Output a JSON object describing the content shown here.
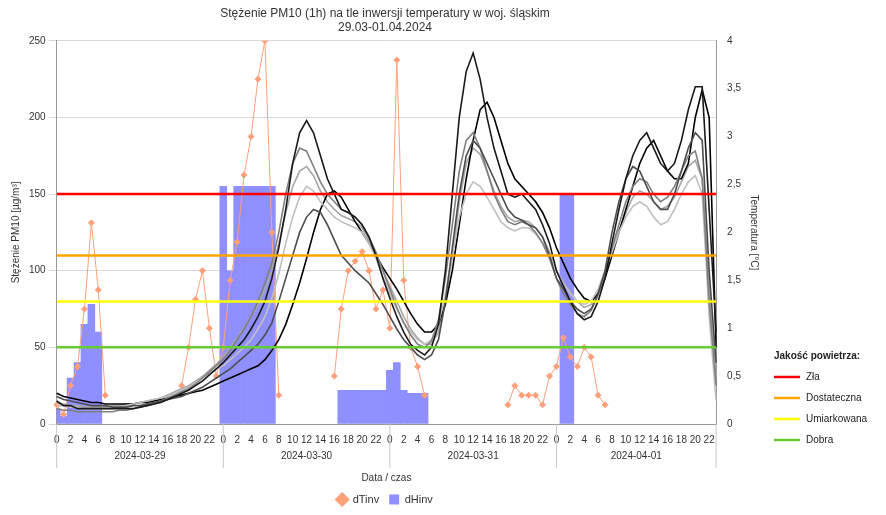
{
  "chart_data": {
    "type": "line",
    "title": "Stężenie PM10 (1h) na tle inwersji temperatury w woj. śląskim",
    "subtitle": "29.03-01.04.2024",
    "x_label": "Data / czas",
    "y_label": "Stężenie PM10 [µg/m³]",
    "y2_label": "Temperatura [°C]",
    "x_groups": [
      "2024-03-29",
      "2024-03-30",
      "2024-03-31",
      "2024-04-01"
    ],
    "categories": [
      "0",
      null,
      "2",
      null,
      "4",
      null,
      "6",
      null,
      "8",
      null,
      "10",
      null,
      "12",
      null,
      "14",
      null,
      "16",
      null,
      "18",
      null,
      "20",
      null,
      "22",
      null,
      "0",
      null,
      "2",
      null,
      "4",
      null,
      "6",
      null,
      "8",
      null,
      "10",
      null,
      "12",
      null,
      "14",
      null,
      "16",
      null,
      "18",
      null,
      "20",
      null,
      "22",
      null,
      "0",
      null,
      "2",
      null,
      "4",
      null,
      "6",
      null,
      "8",
      null,
      "10",
      null,
      "12",
      null,
      "14",
      null,
      "16",
      null,
      "18",
      null,
      "20",
      null,
      "22",
      null,
      "0",
      null,
      "2",
      null,
      "4",
      null,
      "6",
      null,
      "8",
      null,
      "10",
      null,
      "12",
      null,
      "14",
      null,
      "16",
      null,
      "18",
      null,
      "20",
      null,
      "22",
      null
    ],
    "ylim": [
      0,
      250
    ],
    "yticks": [
      0,
      50,
      100,
      150,
      200,
      250
    ],
    "y2lim": [
      0,
      4
    ],
    "y2ticks": [
      0,
      {
        "value": 0.5,
        "label": "0,5"
      },
      1,
      {
        "value": 1.5,
        "label": "1,5"
      },
      2,
      {
        "value": 2.5,
        "label": "2,5"
      },
      3,
      {
        "value": 3.5,
        "label": "3,5"
      },
      4
    ],
    "grid": true,
    "legend": "bottom",
    "thresholds_title": "Jakość powietrza:",
    "thresholds": [
      {
        "name": "Zła",
        "value": 150,
        "color": "#ff0000"
      },
      {
        "name": "Dostateczna",
        "value": 110,
        "color": "#ffa500"
      },
      {
        "name": "Umiarkowana",
        "value": 80,
        "color": "#ffff00"
      },
      {
        "name": "Dobra",
        "value": 50,
        "color": "#66cc33"
      }
    ],
    "series": [
      {
        "name": "dHinv",
        "type": "bar",
        "color": "#8f8fff",
        "values": [
          10,
          5,
          30,
          40,
          65,
          78,
          60,
          null,
          null,
          null,
          null,
          null,
          null,
          null,
          null,
          null,
          null,
          null,
          null,
          null,
          null,
          null,
          null,
          null,
          155,
          100,
          155,
          155,
          155,
          155,
          155,
          155,
          null,
          null,
          null,
          null,
          null,
          null,
          null,
          null,
          null,
          22,
          22,
          22,
          22,
          22,
          22,
          22,
          35,
          40,
          22,
          20,
          20,
          20,
          null,
          null,
          null,
          null,
          null,
          null,
          null,
          null,
          null,
          null,
          null,
          null,
          null,
          null,
          null,
          null,
          null,
          null,
          null,
          150,
          150,
          null,
          null,
          null,
          null,
          null,
          null,
          null,
          null,
          null,
          null,
          null,
          null,
          null,
          null,
          null,
          null,
          null,
          null,
          null,
          null,
          null
        ]
      },
      {
        "name": "dTinv",
        "type": "line",
        "axis": "y2",
        "color": "#ffa07a",
        "marker": "diamond",
        "values": [
          0.2,
          0.1,
          0.4,
          0.6,
          1.2,
          2.1,
          1.4,
          0.3,
          null,
          null,
          null,
          null,
          null,
          null,
          null,
          null,
          null,
          null,
          0.4,
          0.8,
          1.3,
          1.6,
          1.0,
          0.5,
          0.8,
          1.5,
          1.9,
          2.6,
          3.0,
          3.6,
          4,
          2.0,
          0.3,
          null,
          null,
          null,
          null,
          null,
          null,
          null,
          0.5,
          1.2,
          1.6,
          1.7,
          1.8,
          1.6,
          1.2,
          1.4,
          1.0,
          3.8,
          1.5,
          0.8,
          0.6,
          0.3,
          null,
          null,
          null,
          null,
          null,
          null,
          null,
          null,
          null,
          null,
          null,
          0.2,
          0.4,
          0.3,
          0.3,
          0.3,
          0.2,
          0.5,
          0.6,
          0.9,
          0.7,
          0.6,
          0.8,
          0.7,
          0.3,
          0.2,
          null,
          null,
          null,
          null,
          null,
          null,
          null,
          null,
          null,
          null,
          null,
          null,
          null,
          null,
          null,
          null
        ]
      },
      {
        "type": "line",
        "color": "#1a1a1a",
        "values": [
          15,
          12,
          12,
          10,
          10,
          10,
          10,
          10,
          10,
          10,
          10,
          10,
          11,
          12,
          13,
          14,
          16,
          18,
          20,
          22,
          25,
          28,
          32,
          36,
          40,
          45,
          50,
          55,
          62,
          70,
          80,
          95,
          115,
          140,
          170,
          190,
          198,
          190,
          175,
          160,
          150,
          140,
          138,
          135,
          130,
          122,
          110,
          95,
          82,
          70,
          60,
          52,
          48,
          45,
          50,
          65,
          100,
          150,
          200,
          230,
          242,
          225,
          200,
          180,
          165,
          150,
          148,
          150,
          145,
          140,
          130,
          118,
          100,
          90,
          80,
          72,
          68,
          70,
          80,
          95,
          118,
          140,
          160,
          175,
          185,
          190,
          180,
          170,
          165,
          170,
          185,
          205,
          220,
          220,
          140,
          60
        ]
      },
      {
        "type": "line",
        "color": "#4d4d4d",
        "values": [
          18,
          16,
          15,
          14,
          13,
          12,
          12,
          12,
          11,
          11,
          11,
          12,
          12,
          13,
          14,
          15,
          16,
          17,
          18,
          20,
          22,
          24,
          27,
          30,
          33,
          36,
          40,
          44,
          48,
          52,
          58,
          66,
          80,
          95,
          110,
          125,
          135,
          140,
          138,
          130,
          120,
          110,
          105,
          100,
          96,
          92,
          85,
          78,
          70,
          62,
          55,
          50,
          45,
          42,
          45,
          55,
          80,
          115,
          150,
          175,
          185,
          180,
          170,
          160,
          150,
          140,
          135,
          133,
          130,
          128,
          122,
          110,
          95,
          88,
          80,
          75,
          72,
          75,
          85,
          100,
          125,
          145,
          160,
          168,
          165,
          155,
          145,
          140,
          140,
          150,
          165,
          180,
          190,
          185,
          100,
          40
        ]
      },
      {
        "type": "line",
        "color": "#7f7f7f",
        "values": [
          10,
          9,
          9,
          8,
          8,
          8,
          8,
          8,
          8,
          9,
          9,
          10,
          11,
          12,
          13,
          15,
          17,
          19,
          21,
          23,
          26,
          30,
          34,
          38,
          42,
          48,
          55,
          62,
          70,
          80,
          92,
          105,
          125,
          150,
          170,
          180,
          178,
          168,
          158,
          150,
          145,
          140,
          138,
          135,
          130,
          122,
          112,
          100,
          88,
          76,
          66,
          58,
          52,
          50,
          54,
          68,
          95,
          130,
          165,
          185,
          190,
          180,
          165,
          150,
          140,
          132,
          130,
          132,
          130,
          125,
          118,
          108,
          95,
          85,
          78,
          72,
          70,
          74,
          84,
          98,
          115,
          130,
          145,
          155,
          160,
          158,
          150,
          145,
          148,
          155,
          165,
          175,
          178,
          160,
          80,
          25
        ]
      },
      {
        "type": "line",
        "color": "#bfbfbf",
        "values": [
          12,
          12,
          11,
          11,
          10,
          10,
          10,
          10,
          10,
          11,
          12,
          13,
          14,
          15,
          16,
          17,
          18,
          20,
          22,
          24,
          27,
          30,
          33,
          36,
          38,
          42,
          46,
          50,
          55,
          62,
          70,
          82,
          98,
          118,
          135,
          148,
          155,
          152,
          145,
          140,
          135,
          132,
          130,
          128,
          125,
          118,
          108,
          96,
          85,
          75,
          66,
          60,
          55,
          52,
          55,
          65,
          85,
          110,
          135,
          150,
          158,
          155,
          148,
          140,
          132,
          128,
          126,
          128,
          128,
          124,
          118,
          110,
          100,
          92,
          85,
          80,
          78,
          80,
          88,
          100,
          112,
          125,
          135,
          142,
          145,
          142,
          135,
          130,
          132,
          140,
          150,
          158,
          162,
          150,
          70,
          15
        ]
      },
      {
        "type": "line",
        "color": "#000000",
        "values": [
          20,
          18,
          17,
          16,
          15,
          14,
          14,
          13,
          13,
          13,
          13,
          13,
          14,
          14,
          15,
          16,
          17,
          18,
          19,
          20,
          21,
          22,
          24,
          26,
          28,
          30,
          32,
          34,
          36,
          38,
          42,
          48,
          55,
          65,
          78,
          92,
          108,
          125,
          140,
          150,
          152,
          148,
          140,
          132,
          125,
          118,
          110,
          102,
          95,
          88,
          80,
          72,
          65,
          60,
          60,
          65,
          78,
          100,
          130,
          160,
          185,
          205,
          210,
          200,
          185,
          170,
          160,
          155,
          150,
          145,
          138,
          128,
          115,
          105,
          95,
          88,
          82,
          80,
          85,
          95,
          110,
          125,
          140,
          155,
          170,
          180,
          185,
          175,
          165,
          160,
          160,
          170,
          200,
          218,
          200,
          50
        ]
      },
      {
        "type": "line",
        "color": "#a6a6a6",
        "values": [
          14,
          13,
          12,
          12,
          11,
          11,
          11,
          11,
          12,
          12,
          13,
          13,
          14,
          15,
          16,
          17,
          19,
          21,
          23,
          25,
          28,
          31,
          35,
          39,
          44,
          50,
          56,
          63,
          70,
          78,
          88,
          100,
          118,
          138,
          155,
          165,
          168,
          162,
          152,
          145,
          140,
          136,
          134,
          132,
          128,
          120,
          110,
          100,
          90,
          80,
          70,
          62,
          56,
          52,
          52,
          60,
          80,
          110,
          145,
          170,
          180,
          176,
          165,
          152,
          142,
          135,
          132,
          133,
          132,
          128,
          122,
          112,
          100,
          92,
          86,
          80,
          76,
          78,
          86,
          98,
          112,
          126,
          138,
          148,
          152,
          150,
          145,
          140,
          142,
          148,
          158,
          168,
          172,
          160,
          90,
          30
        ]
      }
    ]
  }
}
